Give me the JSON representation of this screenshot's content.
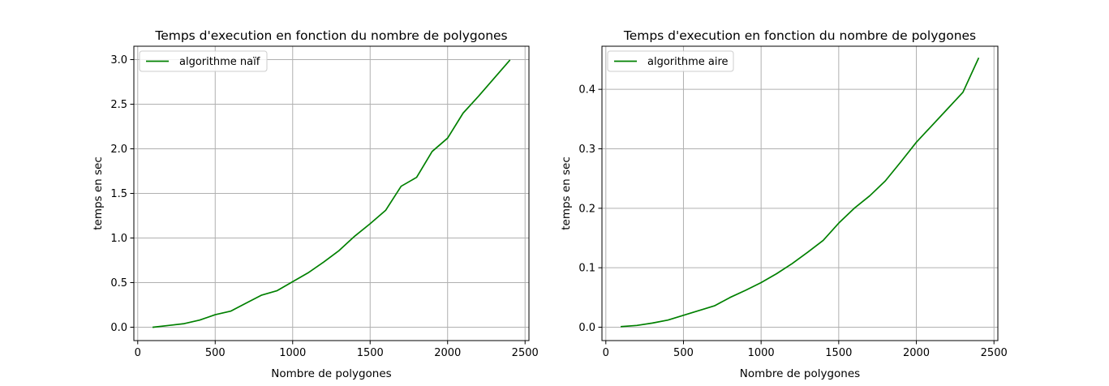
{
  "chart_data": [
    {
      "type": "line",
      "title": "Temps d'execution en fonction du nombre de polygones",
      "xlabel": "Nombre de polygones",
      "ylabel": "temps en sec",
      "xlim": [
        -25,
        2525
      ],
      "ylim": [
        -0.15,
        3.15
      ],
      "xticks": [
        0,
        500,
        1000,
        1500,
        2000,
        2500
      ],
      "xtick_labels": [
        "0",
        "500",
        "1000",
        "1500",
        "2000",
        "2500"
      ],
      "yticks": [
        0.0,
        0.5,
        1.0,
        1.5,
        2.0,
        2.5,
        3.0
      ],
      "ytick_labels": [
        "0.0",
        "0.5",
        "1.0",
        "1.5",
        "2.0",
        "2.5",
        "3.0"
      ],
      "grid": true,
      "legend_position": "top-left",
      "series": [
        {
          "name": "algorithme naïf",
          "color": "#008000",
          "x": [
            100,
            200,
            300,
            400,
            500,
            600,
            700,
            800,
            900,
            1000,
            1100,
            1200,
            1300,
            1400,
            1500,
            1600,
            1700,
            1800,
            1900,
            2000,
            2100,
            2200,
            2300,
            2400
          ],
          "y": [
            0.0,
            0.02,
            0.04,
            0.08,
            0.14,
            0.18,
            0.27,
            0.36,
            0.41,
            0.51,
            0.61,
            0.73,
            0.86,
            1.02,
            1.16,
            1.31,
            1.58,
            1.68,
            1.97,
            2.12,
            2.4,
            2.59,
            2.79,
            2.99
          ]
        }
      ]
    },
    {
      "type": "line",
      "title": "Temps d'execution en fonction du nombre de polygones",
      "xlabel": "Nombre de polygones",
      "ylabel": "temps en sec",
      "xlim": [
        -25,
        2525
      ],
      "ylim": [
        -0.0225,
        0.4725
      ],
      "xticks": [
        0,
        500,
        1000,
        1500,
        2000,
        2500
      ],
      "xtick_labels": [
        "0",
        "500",
        "1000",
        "1500",
        "2000",
        "2500"
      ],
      "yticks": [
        0.0,
        0.1,
        0.2,
        0.3,
        0.4
      ],
      "ytick_labels": [
        "0.0",
        "0.1",
        "0.2",
        "0.3",
        "0.4"
      ],
      "grid": true,
      "legend_position": "top-left",
      "series": [
        {
          "name": "algorithme aire",
          "color": "#008000",
          "x": [
            100,
            200,
            300,
            400,
            500,
            600,
            700,
            800,
            900,
            1000,
            1100,
            1200,
            1300,
            1400,
            1500,
            1600,
            1700,
            1800,
            1900,
            2000,
            2100,
            2200,
            2300,
            2400
          ],
          "y": [
            0.001,
            0.003,
            0.007,
            0.012,
            0.02,
            0.028,
            0.036,
            0.05,
            0.062,
            0.075,
            0.09,
            0.107,
            0.126,
            0.146,
            0.175,
            0.2,
            0.221,
            0.246,
            0.278,
            0.311,
            0.339,
            0.367,
            0.395,
            0.452
          ]
        }
      ]
    }
  ]
}
